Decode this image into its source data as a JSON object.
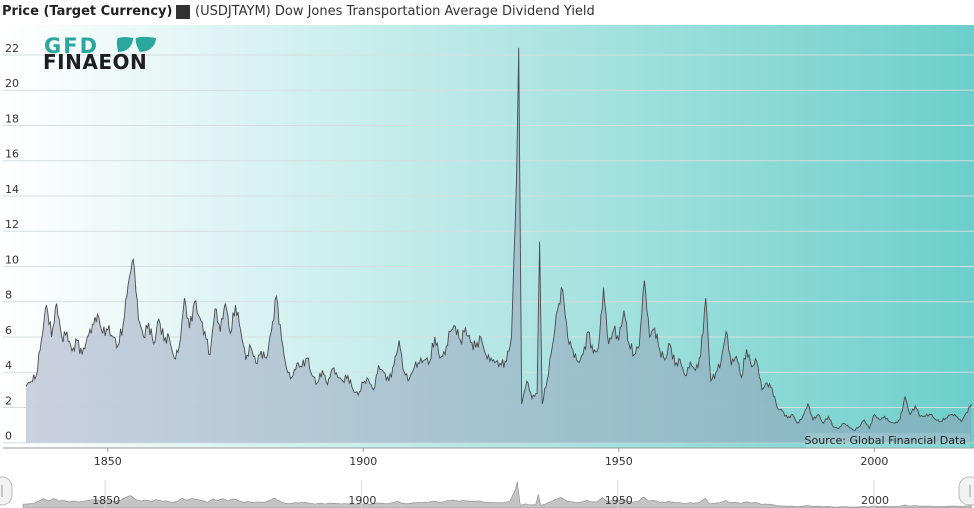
{
  "header": {
    "title": "Price (Target Currency)",
    "legend_label": "(USDJTAYM) Dow Jones Transportation Average Dividend Yield",
    "legend_color": "#333333"
  },
  "logo": {
    "line1": "GFD",
    "line2": "FINAEON"
  },
  "source": "Source: Global Financial Data",
  "chart_data": {
    "type": "area",
    "series": [
      {
        "name": "(USDJTAYM) Dow Jones Transportation Average Dividend Yield",
        "points": [
          [
            1834,
            3.2
          ],
          [
            1836,
            3.8
          ],
          [
            1837,
            5.8
          ],
          [
            1838,
            7.8
          ],
          [
            1839,
            6.0
          ],
          [
            1840,
            7.9
          ],
          [
            1841,
            6.0
          ],
          [
            1842,
            6.3
          ],
          [
            1843,
            5.2
          ],
          [
            1844,
            5.8
          ],
          [
            1845,
            5.0
          ],
          [
            1846,
            6.0
          ],
          [
            1847,
            6.7
          ],
          [
            1848,
            7.3
          ],
          [
            1849,
            6.2
          ],
          [
            1850,
            6.4
          ],
          [
            1851,
            6.0
          ],
          [
            1852,
            5.5
          ],
          [
            1853,
            6.7
          ],
          [
            1854,
            9.0
          ],
          [
            1855,
            10.4
          ],
          [
            1856,
            7.0
          ],
          [
            1857,
            6.0
          ],
          [
            1858,
            6.8
          ],
          [
            1859,
            5.6
          ],
          [
            1860,
            7.0
          ],
          [
            1861,
            5.8
          ],
          [
            1862,
            6.0
          ],
          [
            1863,
            4.8
          ],
          [
            1864,
            5.5
          ],
          [
            1865,
            8.2
          ],
          [
            1866,
            6.5
          ],
          [
            1867,
            8.0
          ],
          [
            1868,
            7.1
          ],
          [
            1869,
            6.3
          ],
          [
            1870,
            5.0
          ],
          [
            1871,
            7.6
          ],
          [
            1872,
            6.3
          ],
          [
            1873,
            7.9
          ],
          [
            1874,
            6.2
          ],
          [
            1875,
            7.8
          ],
          [
            1876,
            6.4
          ],
          [
            1877,
            4.7
          ],
          [
            1878,
            5.4
          ],
          [
            1879,
            4.5
          ],
          [
            1880,
            5.2
          ],
          [
            1881,
            4.8
          ],
          [
            1882,
            6.3
          ],
          [
            1883,
            8.3
          ],
          [
            1884,
            5.9
          ],
          [
            1885,
            4.2
          ],
          [
            1886,
            3.7
          ],
          [
            1887,
            4.5
          ],
          [
            1888,
            4.3
          ],
          [
            1889,
            4.8
          ],
          [
            1890,
            3.8
          ],
          [
            1891,
            3.4
          ],
          [
            1892,
            4.1
          ],
          [
            1893,
            3.3
          ],
          [
            1894,
            4.2
          ],
          [
            1895,
            3.7
          ],
          [
            1896,
            3.5
          ],
          [
            1897,
            3.8
          ],
          [
            1898,
            3.0
          ],
          [
            1899,
            2.7
          ],
          [
            1900,
            3.4
          ],
          [
            1901,
            3.6
          ],
          [
            1902,
            3.0
          ],
          [
            1903,
            4.4
          ],
          [
            1904,
            4.0
          ],
          [
            1905,
            3.5
          ],
          [
            1906,
            4.4
          ],
          [
            1907,
            5.8
          ],
          [
            1908,
            4.0
          ],
          [
            1909,
            3.6
          ],
          [
            1910,
            4.3
          ],
          [
            1911,
            4.5
          ],
          [
            1912,
            4.7
          ],
          [
            1913,
            4.6
          ],
          [
            1914,
            6.0
          ],
          [
            1915,
            4.8
          ],
          [
            1916,
            5.0
          ],
          [
            1917,
            6.3
          ],
          [
            1918,
            6.6
          ],
          [
            1919,
            5.8
          ],
          [
            1920,
            6.5
          ],
          [
            1921,
            5.7
          ],
          [
            1922,
            5.4
          ],
          [
            1923,
            6.0
          ],
          [
            1924,
            5.0
          ],
          [
            1925,
            4.8
          ],
          [
            1926,
            4.6
          ],
          [
            1927,
            4.4
          ],
          [
            1928,
            4.6
          ],
          [
            1929,
            6.0
          ],
          [
            1930,
            15.2
          ],
          [
            1930.4,
            22.4
          ],
          [
            1931,
            2.2
          ],
          [
            1932,
            3.5
          ],
          [
            1933,
            2.5
          ],
          [
            1934,
            2.8
          ],
          [
            1934.5,
            11.4
          ],
          [
            1935,
            2.2
          ],
          [
            1936,
            3.6
          ],
          [
            1937,
            5.5
          ],
          [
            1938,
            7.5
          ],
          [
            1939,
            8.7
          ],
          [
            1940,
            6.0
          ],
          [
            1941,
            5.3
          ],
          [
            1942,
            4.6
          ],
          [
            1943,
            5.0
          ],
          [
            1944,
            6.3
          ],
          [
            1945,
            5.1
          ],
          [
            1946,
            5.4
          ],
          [
            1947,
            8.8
          ],
          [
            1948,
            5.6
          ],
          [
            1949,
            6.4
          ],
          [
            1950,
            5.8
          ],
          [
            1951,
            7.5
          ],
          [
            1952,
            5.6
          ],
          [
            1953,
            5.0
          ],
          [
            1954,
            5.5
          ],
          [
            1955,
            9.2
          ],
          [
            1956,
            6.0
          ],
          [
            1957,
            6.5
          ],
          [
            1958,
            5.3
          ],
          [
            1959,
            4.7
          ],
          [
            1960,
            5.6
          ],
          [
            1961,
            4.4
          ],
          [
            1962,
            4.7
          ],
          [
            1963,
            3.8
          ],
          [
            1964,
            4.6
          ],
          [
            1965,
            4.1
          ],
          [
            1966,
            4.9
          ],
          [
            1967,
            8.2
          ],
          [
            1968,
            3.5
          ],
          [
            1969,
            4.0
          ],
          [
            1970,
            4.6
          ],
          [
            1971,
            6.3
          ],
          [
            1972,
            4.4
          ],
          [
            1973,
            4.9
          ],
          [
            1974,
            3.7
          ],
          [
            1975,
            5.3
          ],
          [
            1976,
            4.3
          ],
          [
            1977,
            4.6
          ],
          [
            1978,
            3.0
          ],
          [
            1979,
            3.4
          ],
          [
            1980,
            3.1
          ],
          [
            1981,
            2.0
          ],
          [
            1982,
            1.8
          ],
          [
            1983,
            1.4
          ],
          [
            1984,
            1.6
          ],
          [
            1985,
            1.1
          ],
          [
            1986,
            1.5
          ],
          [
            1987,
            2.2
          ],
          [
            1988,
            1.3
          ],
          [
            1989,
            1.6
          ],
          [
            1990,
            1.1
          ],
          [
            1991,
            1.5
          ],
          [
            1992,
            0.9
          ],
          [
            1993,
            0.8
          ],
          [
            1994,
            1.1
          ],
          [
            1995,
            0.9
          ],
          [
            1996,
            0.7
          ],
          [
            1997,
            0.9
          ],
          [
            1998,
            1.3
          ],
          [
            1999,
            0.8
          ],
          [
            2000,
            1.6
          ],
          [
            2001,
            1.3
          ],
          [
            2002,
            1.5
          ],
          [
            2003,
            1.2
          ],
          [
            2004,
            1.1
          ],
          [
            2005,
            1.3
          ],
          [
            2006,
            2.6
          ],
          [
            2007,
            1.6
          ],
          [
            2008,
            2.1
          ],
          [
            2009,
            1.5
          ],
          [
            2010,
            1.5
          ],
          [
            2011,
            1.6
          ],
          [
            2012,
            1.3
          ],
          [
            2013,
            1.2
          ],
          [
            2014,
            1.4
          ],
          [
            2015,
            1.6
          ],
          [
            2016,
            1.5
          ],
          [
            2017,
            1.2
          ],
          [
            2018,
            1.7
          ],
          [
            2019,
            2.2
          ]
        ]
      }
    ],
    "y_ticks": [
      0,
      2,
      4,
      6,
      8,
      10,
      12,
      14,
      16,
      18,
      20,
      22
    ],
    "x_ticks": [
      1850,
      1900,
      1950,
      2000
    ],
    "navigator_ticks": [
      1850,
      1900,
      1950,
      2000
    ],
    "xlim": [
      1829.5,
      2019.5
    ],
    "ylim": [
      -0.3,
      23.7
    ],
    "grid": true,
    "legend_position": "top"
  }
}
